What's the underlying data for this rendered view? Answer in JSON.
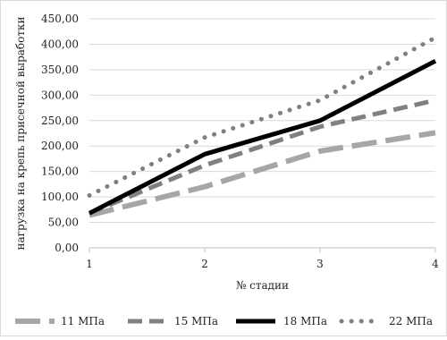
{
  "chart_data": {
    "type": "line",
    "title": "",
    "xlabel": "№ стадии",
    "ylabel": "нагрузка на крепь присечной выработки",
    "x": [
      1,
      2,
      3,
      4
    ],
    "x_ticks": [
      "1",
      "2",
      "3",
      "4"
    ],
    "ylim": [
      0,
      450
    ],
    "y_ticks": [
      "0,00",
      "50,00",
      "100,00",
      "150,00",
      "200,00",
      "250,00",
      "300,00",
      "350,00",
      "400,00",
      "450,00"
    ],
    "grid": "horizontal",
    "legend_position": "bottom",
    "series": [
      {
        "name": "11 МПа",
        "values": [
          64,
          120,
          190,
          226
        ],
        "color": "#a6a6a6",
        "style": "long-dash"
      },
      {
        "name": "15 МПа",
        "values": [
          68,
          162,
          238,
          290
        ],
        "color": "#808080",
        "style": "dash"
      },
      {
        "name": "18 МПа",
        "values": [
          68,
          184,
          250,
          367
        ],
        "color": "#000000",
        "style": "solid"
      },
      {
        "name": "22 МПа",
        "values": [
          103,
          217,
          290,
          413
        ],
        "color": "#808080",
        "style": "dot"
      }
    ]
  }
}
